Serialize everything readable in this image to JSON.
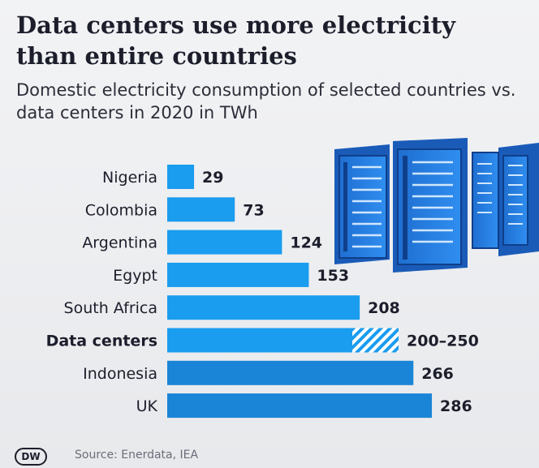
{
  "title": "Data centers use more electricity than entire countries",
  "subtitle": "Domestic electricity consumption of selected countries vs. data centers in 2020 in TWh",
  "source": "Source: Enerdata, IEA",
  "logo": "DW",
  "colors": {
    "bar": "#1a9cef",
    "bar_dark": "#1a84d6",
    "hatch": "#1a9cef",
    "label": "#1c1e2b",
    "value": "#1c1e2b"
  },
  "chart_data": {
    "type": "bar",
    "orientation": "horizontal",
    "unit": "TWh",
    "categories": [
      "Nigeria",
      "Colombia",
      "Argentina",
      "Egypt",
      "South Africa",
      "Data centers",
      "Indonesia",
      "UK"
    ],
    "values": [
      29,
      73,
      124,
      153,
      208,
      200,
      266,
      286
    ],
    "range_upper": [
      null,
      null,
      null,
      null,
      null,
      250,
      null,
      null
    ],
    "value_labels": [
      "29",
      "73",
      "124",
      "153",
      "208",
      "200–250",
      "266",
      "286"
    ],
    "highlight": "Data centers",
    "xlim": [
      0,
      300
    ]
  }
}
